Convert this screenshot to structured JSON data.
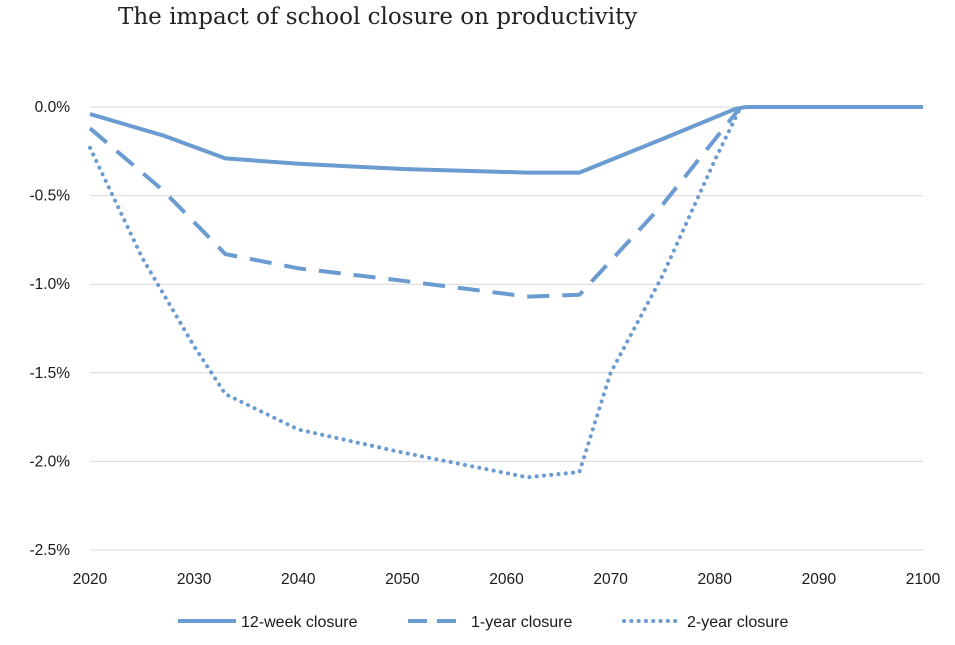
{
  "chart_data": {
    "type": "line",
    "title": "The impact of school closure on productivity",
    "xlabel": "",
    "ylabel": "",
    "xlim": [
      2020,
      2100
    ],
    "ylim": [
      -2.5,
      0.0
    ],
    "x_ticks": [
      "2020",
      "2030",
      "2040",
      "2050",
      "2060",
      "2070",
      "2080",
      "2090",
      "2100"
    ],
    "y_ticks": [
      "0.0%",
      "-0.5%",
      "-1.0%",
      "-1.5%",
      "-2.0%",
      "-2.5%"
    ],
    "y_tick_values": [
      0.0,
      -0.5,
      -1.0,
      -1.5,
      -2.0,
      -2.5
    ],
    "grid": "horizontal",
    "legend_position": "bottom",
    "line_color": "#6a9bd1",
    "series": [
      {
        "name": "12-week closure",
        "style": "solid",
        "x": [
          2020,
          2027,
          2033,
          2040,
          2050,
          2062,
          2067,
          2075,
          2082,
          2083,
          2090,
          2100
        ],
        "values": [
          -0.04,
          -0.16,
          -0.29,
          -0.32,
          -0.35,
          -0.37,
          -0.37,
          -0.18,
          -0.01,
          0.0,
          0.0,
          0.0
        ]
      },
      {
        "name": "1-year closure",
        "style": "dashed",
        "x": [
          2020,
          2027,
          2033,
          2040,
          2050,
          2062,
          2067,
          2075,
          2082.5
        ],
        "values": [
          -0.12,
          -0.47,
          -0.83,
          -0.91,
          -0.98,
          -1.07,
          -1.06,
          -0.55,
          0.0
        ]
      },
      {
        "name": "2-year closure",
        "style": "dotted",
        "x": [
          2020,
          2025,
          2030,
          2033,
          2040,
          2050,
          2062,
          2067,
          2070,
          2075,
          2080,
          2082.5
        ],
        "values": [
          -0.23,
          -0.85,
          -1.35,
          -1.62,
          -1.82,
          -1.95,
          -2.09,
          -2.06,
          -1.5,
          -0.95,
          -0.3,
          0.0
        ]
      }
    ]
  }
}
